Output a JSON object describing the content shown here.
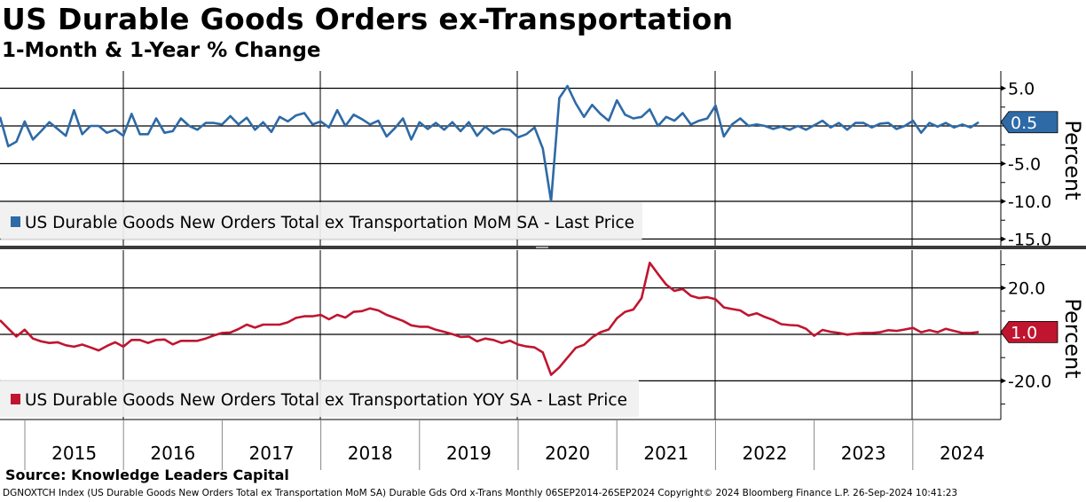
{
  "title": "US Durable Goods Orders ex-Transportation",
  "subtitle": "1-Month & 1-Year % Change",
  "source": "Source: Knowledge Leaders Capital",
  "footer": "DGNOXTCH Index (US Durable Goods New Orders Total ex Transportation MoM SA) Durable Gds Ord x-Trans  Monthly 06SEP2014-26SEP2024  Copyright© 2024 Bloomberg Finance L.P.  26-Sep-2024 10:41:23",
  "chart_data": [
    {
      "type": "line",
      "panel": "top",
      "start": "2014-10",
      "frequency": "monthly",
      "series": [
        {
          "name": "US Durable Goods New Orders Total ex Transportation MoM SA - Last Price",
          "color": "#2e6aa6",
          "values": [
            1.2,
            -2.7,
            -2.1,
            0.6,
            -1.8,
            -0.7,
            0.5,
            -0.4,
            -1.3,
            2.1,
            -1.1,
            0,
            0,
            -0.9,
            -0.5,
            -1.3,
            1.6,
            -1.1,
            -1.1,
            1.0,
            -0.9,
            -0.7,
            1.0,
            0,
            -0.5,
            0.4,
            0.4,
            0.2,
            1.3,
            0.2,
            1.1,
            -0.5,
            0.5,
            -0.8,
            1.2,
            0.6,
            1.4,
            1.7,
            0.2,
            0.6,
            -0.2,
            2.1,
            0,
            1.5,
            0.9,
            0.2,
            0.7,
            -1.4,
            -0.3,
            1.0,
            -1.8,
            0.5,
            -0.4,
            0.4,
            -0.5,
            0.5,
            -0.7,
            0.5,
            -1.3,
            -0.1,
            -1.0,
            -0.4,
            -0.5,
            -1.5,
            -1.1,
            -0.2,
            -3.0,
            -10.0,
            3.7,
            5.3,
            3.0,
            1.2,
            2.8,
            1.6,
            0.7,
            3.4,
            1.5,
            1.0,
            1.2,
            2.2,
            0,
            1.2,
            0.7,
            1.7,
            0.2,
            0.7,
            1.0,
            2.7,
            -1.4,
            0.2,
            1.0,
            0,
            0.2,
            0,
            -0.4,
            -0.1,
            -0.5,
            0,
            -0.5,
            0.1,
            0.7,
            -0.2,
            0.4,
            -0.5,
            0.4,
            0.4,
            -0.2,
            0.3,
            0.4,
            -0.4,
            0,
            0.7,
            -0.9,
            0.4,
            -0.1,
            0.4,
            -0.2,
            0.2,
            -0.2,
            0.5
          ],
          "last_label": "0.5"
        }
      ],
      "yticks": [
        "5.0",
        "-5.0",
        "-10.0",
        "-15.0"
      ],
      "ytick_values": [
        5,
        -5,
        -10,
        -15
      ],
      "gridlines": [
        5,
        0,
        -5,
        -10,
        -15
      ],
      "ylim": [
        -15.9,
        7.3
      ],
      "ylabel": "Percent",
      "legend": "bottom-left"
    },
    {
      "type": "line",
      "panel": "bottom",
      "start": "2014-10",
      "frequency": "monthly",
      "series": [
        {
          "name": "US Durable Goods New Orders Total ex Transportation YOY SA - Last Price",
          "color": "#c0152f",
          "values": [
            6.1,
            2.5,
            -0.9,
            2.0,
            -1.8,
            -3.0,
            -3.7,
            -3.4,
            -4.7,
            -5.3,
            -4.4,
            -5.6,
            -6.9,
            -5.0,
            -3.4,
            -5.3,
            -2.4,
            -2.4,
            -3.7,
            -2.4,
            -2.2,
            -4.3,
            -2.8,
            -2.8,
            -2.8,
            -1.8,
            -0.5,
            0.6,
            0.8,
            2.3,
            4.2,
            2.9,
            4.2,
            4.2,
            4.2,
            5.2,
            7.1,
            7.8,
            7.8,
            8.4,
            6.5,
            8.4,
            7.2,
            9.7,
            10.0,
            11.2,
            10.3,
            8.4,
            7.1,
            5.8,
            3.9,
            3.3,
            3.3,
            2.0,
            1.1,
            0.1,
            -1.1,
            -0.9,
            -3.0,
            -1.8,
            -2.4,
            -3.7,
            -2.7,
            -4.4,
            -5.2,
            -5.6,
            -7.8,
            -17.4,
            -14.2,
            -10.0,
            -5.8,
            -4.5,
            -1.3,
            0.9,
            2.1,
            6.9,
            9.7,
            10.7,
            15.6,
            30.8,
            26.0,
            21.4,
            18.7,
            19.5,
            16.6,
            15.6,
            16.0,
            15.1,
            11.6,
            10.9,
            10.3,
            8.1,
            9.1,
            7.5,
            6.2,
            4.4,
            4.0,
            3.8,
            2.4,
            -0.6,
            1.9,
            1.1,
            0.6,
            -0.1,
            0.3,
            0.6,
            0.6,
            0.9,
            1.8,
            1.5,
            2.1,
            2.8,
            0.9,
            1.8,
            0.9,
            2.4,
            1.5,
            0.6,
            0.6,
            1.0
          ],
          "last_label": "1.0"
        }
      ],
      "yticks": [
        "20.0",
        "-20.0"
      ],
      "ytick_values": [
        20,
        -20
      ],
      "gridlines": [
        20,
        0,
        -20
      ],
      "ylim": [
        -36,
        37
      ],
      "ylabel": "Percent",
      "legend": "bottom-left"
    }
  ],
  "xaxis": {
    "tick_labels": [
      "2015",
      "2016",
      "2017",
      "2018",
      "2019",
      "2020",
      "2021",
      "2022",
      "2023",
      "2024"
    ]
  }
}
